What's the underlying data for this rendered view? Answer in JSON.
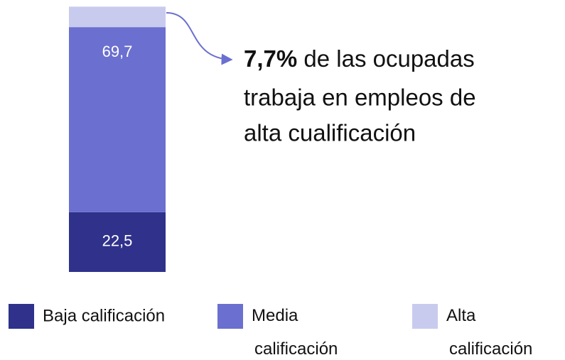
{
  "chart_data": {
    "type": "stacked_bar",
    "ylim": [
      0,
      100
    ],
    "series": [
      {
        "name": "Baja calificación",
        "color": "#2f318b",
        "values": [
          22.5
        ],
        "value_labels": [
          "22,5"
        ]
      },
      {
        "name": "Media calificación",
        "color": "#6b6fcf",
        "values": [
          69.7
        ],
        "value_labels": [
          "69,7"
        ]
      },
      {
        "name": "Alta calificación",
        "color": "#c9cbee",
        "values": [
          7.7
        ]
      }
    ],
    "annotation": {
      "emphasis": "7,7%",
      "lines": [
        "de las ocupadas",
        "trabaja en empleos de",
        "alta cualificación"
      ]
    }
  }
}
